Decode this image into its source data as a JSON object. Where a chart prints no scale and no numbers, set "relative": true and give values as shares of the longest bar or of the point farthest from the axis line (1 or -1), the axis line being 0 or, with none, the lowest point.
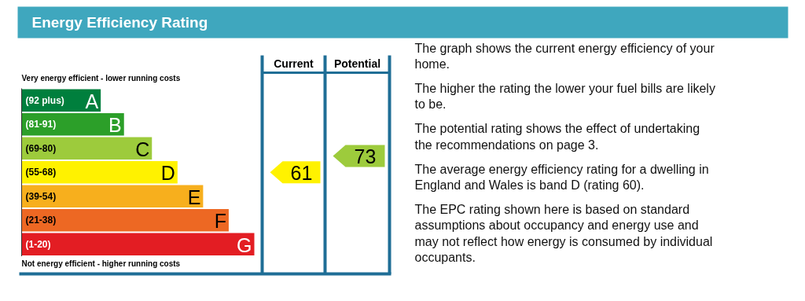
{
  "chart_data": {
    "type": "bar",
    "orientation": "horizontal",
    "relative": true,
    "title": "Energy Efficiency Rating",
    "categories": [
      "(92 plus) A",
      "(81-91) B",
      "(69-80) C",
      "(55-68) D",
      "(39-54) E",
      "(21-38) F",
      "(1-20) G"
    ],
    "values": [
      0.34,
      0.44,
      0.56,
      0.67,
      0.78,
      0.89,
      1
    ],
    "colors": [
      "#007f3d",
      "#2c9f29",
      "#9dcb3c",
      "#fff200",
      "#f7af1d",
      "#ed6823",
      "#e31d23"
    ],
    "annotations": [
      "Very energy efficient - lower running costs",
      "Not energy efficient - higher running costs",
      "Current",
      "Potential",
      "61",
      "73",
      "The graph shows the current energy efficiency of your\nhome.",
      "The higher the rating the lower your fuel bills are likely\nto be.",
      "The potential rating shows the effect of undertaking\nthe recommendations on page 3.",
      "The average energy efficiency rating for a dwelling in\nEngland and Wales is band D (rating 60).",
      "The EPC rating shown here is based on standard\nassumptions about occupancy and energy use and\nmay not reflect how energy is consumed by individual\noccupants."
    ]
  }
}
